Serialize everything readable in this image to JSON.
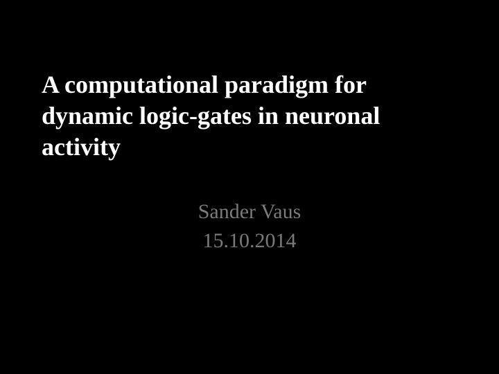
{
  "slide": {
    "title": "A computational paradigm for dynamic logic-gates in neuronal activity",
    "author": "Sander Vaus",
    "date": "15.10.2014",
    "background_color": "#000000",
    "title_color": "#ffffff",
    "subtitle_color": "#7a7a7a",
    "title_fontsize": 36,
    "subtitle_fontsize": 30,
    "font_family": "Times New Roman"
  }
}
